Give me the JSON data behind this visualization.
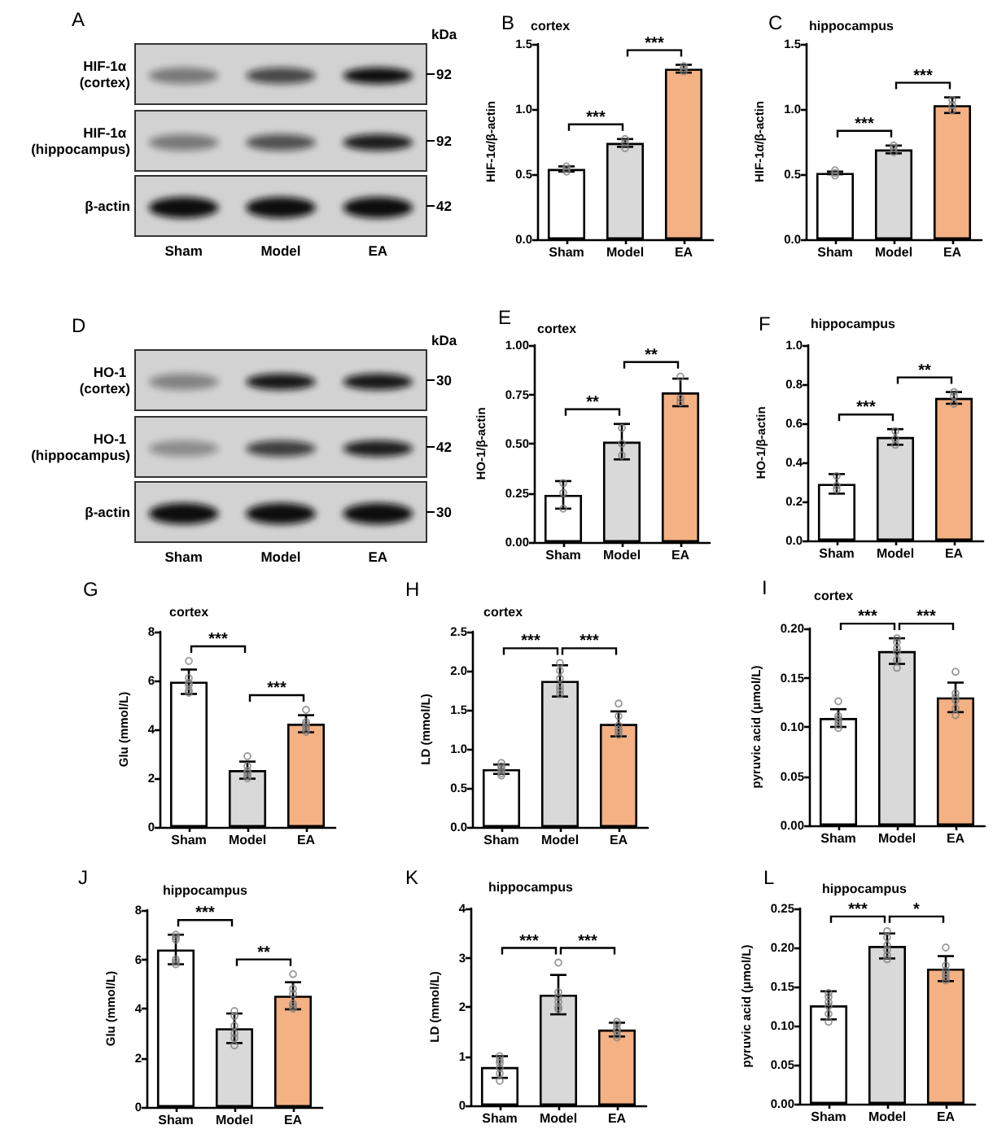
{
  "chart_data": [
    {
      "type": "other",
      "title": "A",
      "categories": [
        "Sham",
        "Model",
        "EA"
      ],
      "y_categories": [
        "HIF-1α (cortex)",
        "HIF-1α (hippocampus)",
        "β-actin"
      ],
      "y2_categories": [
        "92",
        "92",
        "42"
      ],
      "annotations": [
        "kDa"
      ]
    },
    {
      "type": "bar",
      "title": "B",
      "subtitle": "cortex",
      "ylabel": "HIF-1α/β-actin",
      "categories": [
        "Sham",
        "Model",
        "EA"
      ],
      "series": [
        {
          "type": "bar",
          "values": [
            0.54,
            0.74,
            1.31
          ],
          "colors": [
            "#ffffff",
            "#d9d9d9",
            "#f4b183"
          ],
          "errors": [
            0.02,
            0.03,
            0.03
          ]
        },
        {
          "type": "scatter",
          "marker": "circle",
          "color": "#7f7f7f",
          "x": [
            "Sham",
            "Sham",
            "Sham",
            "Model",
            "Model",
            "Model",
            "EA",
            "EA",
            "EA"
          ],
          "values": [
            0.52,
            0.54,
            0.56,
            0.7,
            0.74,
            0.77,
            1.29,
            1.31,
            1.33
          ]
        }
      ],
      "ylim": [
        0,
        1.5
      ],
      "yticks": [
        {
          "value": 0,
          "label": "0.0"
        },
        0.5,
        {
          "value": 1,
          "label": "1.0"
        },
        1.5
      ],
      "annotations": [
        "***",
        "***"
      ]
    },
    {
      "type": "bar",
      "title": "C",
      "subtitle": "hippocampus",
      "ylabel": "HIF-1α/β-actin",
      "categories": [
        "Sham",
        "Model",
        "EA"
      ],
      "series": [
        {
          "type": "bar",
          "values": [
            0.51,
            0.69,
            1.03
          ],
          "colors": [
            "#ffffff",
            "#d9d9d9",
            "#f4b183"
          ],
          "errors": [
            0.01,
            0.03,
            0.06
          ]
        },
        {
          "type": "scatter",
          "marker": "circle",
          "color": "#7f7f7f",
          "x": [
            "Sham",
            "Sham",
            "Sham",
            "Model",
            "Model",
            "Model",
            "EA",
            "EA",
            "EA"
          ],
          "values": [
            0.49,
            0.51,
            0.53,
            0.67,
            0.7,
            0.72,
            0.99,
            1.03,
            1.07
          ]
        }
      ],
      "ylim": [
        0,
        1.5
      ],
      "yticks": [
        {
          "value": 0,
          "label": "0.0"
        },
        0.5,
        {
          "value": 1,
          "label": "1.0"
        },
        1.5
      ],
      "annotations": [
        "***",
        "***"
      ]
    },
    {
      "type": "other",
      "title": "D",
      "categories": [
        "Sham",
        "Model",
        "EA"
      ],
      "y_categories": [
        "HO-1 (cortex)",
        "HO-1 (hippocampus)",
        "β-actin"
      ],
      "y2_categories": [
        "30",
        "42",
        "30"
      ],
      "annotations": [
        "kDa"
      ]
    },
    {
      "type": "bar",
      "title": "E",
      "subtitle": "cortex",
      "ylabel": "HO-1/β-actin",
      "categories": [
        "Sham",
        "Model",
        "EA"
      ],
      "series": [
        {
          "type": "bar",
          "values": [
            0.24,
            0.51,
            0.76
          ],
          "colors": [
            "#ffffff",
            "#d9d9d9",
            "#f4b183"
          ],
          "errors": [
            0.07,
            0.09,
            0.07
          ]
        },
        {
          "type": "scatter",
          "marker": "circle",
          "color": "#7f7f7f",
          "x": [
            "Sham",
            "Sham",
            "Sham",
            "Model",
            "Model",
            "Model",
            "EA",
            "EA",
            "EA"
          ],
          "values": [
            0.3,
            0.25,
            0.17,
            0.58,
            0.5,
            0.44,
            0.84,
            0.73,
            0.71
          ]
        }
      ],
      "ylim": [
        0,
        1
      ],
      "yticks": [
        {
          "value": 0,
          "label": "0.00"
        },
        0.25,
        {
          "value": 0.5,
          "label": "0.50"
        },
        0.75,
        {
          "value": 1,
          "label": "1.00"
        }
      ],
      "annotations": [
        "**",
        "**"
      ]
    },
    {
      "type": "bar",
      "title": "F",
      "subtitle": "hippocampus",
      "ylabel": "HO-1/β-actin",
      "categories": [
        "Sham",
        "Model",
        "EA"
      ],
      "series": [
        {
          "type": "bar",
          "values": [
            0.29,
            0.53,
            0.73
          ],
          "colors": [
            "#ffffff",
            "#d9d9d9",
            "#f4b183"
          ],
          "errors": [
            0.05,
            0.04,
            0.03
          ]
        },
        {
          "type": "scatter",
          "marker": "circle",
          "color": "#7f7f7f",
          "x": [
            "Sham",
            "Sham",
            "Sham",
            "Model",
            "Model",
            "Model",
            "EA",
            "EA",
            "EA"
          ],
          "values": [
            0.33,
            0.28,
            0.26,
            0.56,
            0.52,
            0.49,
            0.76,
            0.74,
            0.7
          ]
        }
      ],
      "ylim": [
        0,
        1
      ],
      "yticks": [
        {
          "value": 0,
          "label": "0.0"
        },
        0.2,
        0.4,
        0.6,
        0.8,
        {
          "value": 1,
          "label": "1.0"
        }
      ],
      "annotations": [
        "***",
        "**"
      ]
    },
    {
      "type": "bar",
      "title": "G",
      "subtitle": "cortex",
      "ylabel": "Glu (mmol/L)",
      "categories": [
        "Sham",
        "Model",
        "EA"
      ],
      "series": [
        {
          "type": "bar",
          "values": [
            5.95,
            2.33,
            4.23
          ],
          "colors": [
            "#ffffff",
            "#d9d9d9",
            "#f4b183"
          ],
          "errors": [
            0.5,
            0.35,
            0.35
          ]
        },
        {
          "type": "scatter",
          "marker": "circle",
          "color": "#7f7f7f",
          "x": [
            "Sham",
            "Sham",
            "Sham",
            "Sham",
            "Sham",
            "Sham",
            "Model",
            "Model",
            "Model",
            "Model",
            "Model",
            "Model",
            "EA",
            "EA",
            "EA",
            "EA",
            "EA",
            "EA"
          ],
          "values": [
            6.8,
            6.1,
            5.9,
            5.8,
            5.6,
            5.5,
            2.9,
            2.5,
            2.3,
            2.2,
            2.1,
            2.0,
            4.8,
            4.3,
            4.2,
            4.1,
            4.0,
            3.9
          ]
        }
      ],
      "ylim": [
        0,
        8
      ],
      "yticks": [
        0,
        2,
        4,
        6,
        8
      ],
      "annotations": [
        "***",
        "***"
      ]
    },
    {
      "type": "bar",
      "title": "H",
      "subtitle": "cortex",
      "ylabel": "LD (mmol/L)",
      "categories": [
        "Sham",
        "Model",
        "EA"
      ],
      "series": [
        {
          "type": "bar",
          "values": [
            0.74,
            1.87,
            1.32
          ],
          "colors": [
            "#ffffff",
            "#d9d9d9",
            "#f4b183"
          ],
          "errors": [
            0.06,
            0.2,
            0.16
          ]
        },
        {
          "type": "scatter",
          "marker": "circle",
          "color": "#7f7f7f",
          "x": [
            "Sham",
            "Sham",
            "Sham",
            "Sham",
            "Sham",
            "Sham",
            "Model",
            "Model",
            "Model",
            "Model",
            "Model",
            "Model",
            "EA",
            "EA",
            "EA",
            "EA",
            "EA",
            "EA"
          ],
          "values": [
            0.82,
            0.78,
            0.75,
            0.72,
            0.69,
            0.66,
            2.1,
            2.0,
            1.9,
            1.8,
            1.75,
            1.7,
            1.58,
            1.42,
            1.3,
            1.25,
            1.22,
            1.18
          ]
        }
      ],
      "ylim": [
        0,
        2.5
      ],
      "yticks": [
        {
          "value": 0,
          "label": "0.0"
        },
        0.5,
        {
          "value": 1,
          "label": "1.0"
        },
        1.5,
        {
          "value": 2,
          "label": "2.0"
        },
        2.5
      ],
      "annotations": [
        "***",
        "***"
      ]
    },
    {
      "type": "bar",
      "title": "I",
      "subtitle": "cortex",
      "ylabel": "pyruvic acid (μmol/L)",
      "categories": [
        "Sham",
        "Model",
        "EA"
      ],
      "series": [
        {
          "type": "bar",
          "values": [
            0.109,
            0.177,
            0.13
          ],
          "colors": [
            "#ffffff",
            "#d9d9d9",
            "#f4b183"
          ],
          "errors": [
            0.009,
            0.013,
            0.015
          ]
        },
        {
          "type": "scatter",
          "marker": "circle",
          "color": "#7f7f7f",
          "x": [
            "Sham",
            "Sham",
            "Sham",
            "Sham",
            "Sham",
            "Sham",
            "Model",
            "Model",
            "Model",
            "Model",
            "Model",
            "Model",
            "EA",
            "EA",
            "EA",
            "EA",
            "EA",
            "EA"
          ],
          "values": [
            0.126,
            0.111,
            0.108,
            0.105,
            0.102,
            0.099,
            0.19,
            0.186,
            0.18,
            0.176,
            0.168,
            0.16,
            0.156,
            0.134,
            0.13,
            0.127,
            0.119,
            0.112
          ]
        }
      ],
      "ylim": [
        0,
        0.2
      ],
      "yticks": [
        {
          "value": 0,
          "label": "0.00"
        },
        0.05,
        {
          "value": 0.1,
          "label": "0.10"
        },
        0.15,
        {
          "value": 0.2,
          "label": "0.20"
        }
      ],
      "annotations": [
        "***",
        "***"
      ]
    },
    {
      "type": "bar",
      "title": "J",
      "subtitle": "hippocampus",
      "ylabel": "Glu (mmol/L)",
      "categories": [
        "Sham",
        "Model",
        "EA"
      ],
      "series": [
        {
          "type": "bar",
          "values": [
            6.4,
            3.2,
            4.52
          ],
          "colors": [
            "#ffffff",
            "#d9d9d9",
            "#f4b183"
          ],
          "errors": [
            0.6,
            0.6,
            0.55
          ]
        },
        {
          "type": "scatter",
          "marker": "circle",
          "color": "#7f7f7f",
          "x": [
            "Sham",
            "Sham",
            "Sham",
            "Sham",
            "Sham",
            "Sham",
            "Model",
            "Model",
            "Model",
            "Model",
            "Model",
            "Model",
            "EA",
            "EA",
            "EA",
            "EA",
            "EA",
            "EA"
          ],
          "values": [
            7.0,
            6.9,
            6.8,
            6.0,
            5.9,
            5.8,
            3.9,
            3.7,
            3.3,
            3.0,
            2.8,
            2.5,
            5.4,
            4.8,
            4.6,
            4.2,
            4.1,
            4.0
          ]
        }
      ],
      "ylim": [
        0,
        8
      ],
      "yticks": [
        0,
        2,
        4,
        6,
        8
      ],
      "annotations": [
        "***",
        "**"
      ]
    },
    {
      "type": "bar",
      "title": "K",
      "subtitle": "hippocampus",
      "ylabel": "LD (mmol/L)",
      "categories": [
        "Sham",
        "Model",
        "EA"
      ],
      "series": [
        {
          "type": "bar",
          "values": [
            0.78,
            2.25,
            1.54
          ],
          "colors": [
            "#ffffff",
            "#d9d9d9",
            "#f4b183"
          ],
          "errors": [
            0.22,
            0.4,
            0.14
          ]
        },
        {
          "type": "scatter",
          "marker": "circle",
          "color": "#7f7f7f",
          "x": [
            "Sham",
            "Sham",
            "Sham",
            "Sham",
            "Sham",
            "Sham",
            "Model",
            "Model",
            "Model",
            "Model",
            "Model",
            "Model",
            "EA",
            "EA",
            "EA",
            "EA",
            "EA",
            "EA"
          ],
          "values": [
            1.0,
            0.92,
            0.86,
            0.76,
            0.65,
            0.5,
            2.9,
            2.3,
            2.2,
            2.1,
            2.0,
            1.95,
            1.7,
            1.65,
            1.56,
            1.5,
            1.43,
            1.38
          ]
        }
      ],
      "ylim": [
        0,
        4
      ],
      "yticks": [
        0,
        1,
        2,
        3,
        4
      ],
      "annotations": [
        "***",
        "***"
      ]
    },
    {
      "type": "bar",
      "title": "L",
      "subtitle": "hippocampus",
      "ylabel": "pyruvic acid (μmol/L)",
      "categories": [
        "Sham",
        "Model",
        "EA"
      ],
      "series": [
        {
          "type": "bar",
          "values": [
            0.126,
            0.202,
            0.173
          ],
          "colors": [
            "#ffffff",
            "#d9d9d9",
            "#f4b183"
          ],
          "errors": [
            0.018,
            0.016,
            0.016
          ]
        },
        {
          "type": "scatter",
          "marker": "circle",
          "color": "#7f7f7f",
          "x": [
            "Sham",
            "Sham",
            "Sham",
            "Sham",
            "Sham",
            "Sham",
            "Model",
            "Model",
            "Model",
            "Model",
            "Model",
            "Model",
            "EA",
            "EA",
            "EA",
            "EA",
            "EA",
            "EA"
          ],
          "values": [
            0.142,
            0.137,
            0.13,
            0.125,
            0.115,
            0.105,
            0.221,
            0.213,
            0.203,
            0.197,
            0.19,
            0.185,
            0.2,
            0.177,
            0.17,
            0.166,
            0.162,
            0.158
          ]
        }
      ],
      "ylim": [
        0,
        0.25
      ],
      "yticks": [
        {
          "value": 0,
          "label": "0.00"
        },
        0.05,
        {
          "value": 0.1,
          "label": "0.10"
        },
        0.15,
        {
          "value": 0.2,
          "label": "0.20"
        },
        0.25
      ],
      "annotations": [
        "***",
        "*"
      ]
    }
  ]
}
